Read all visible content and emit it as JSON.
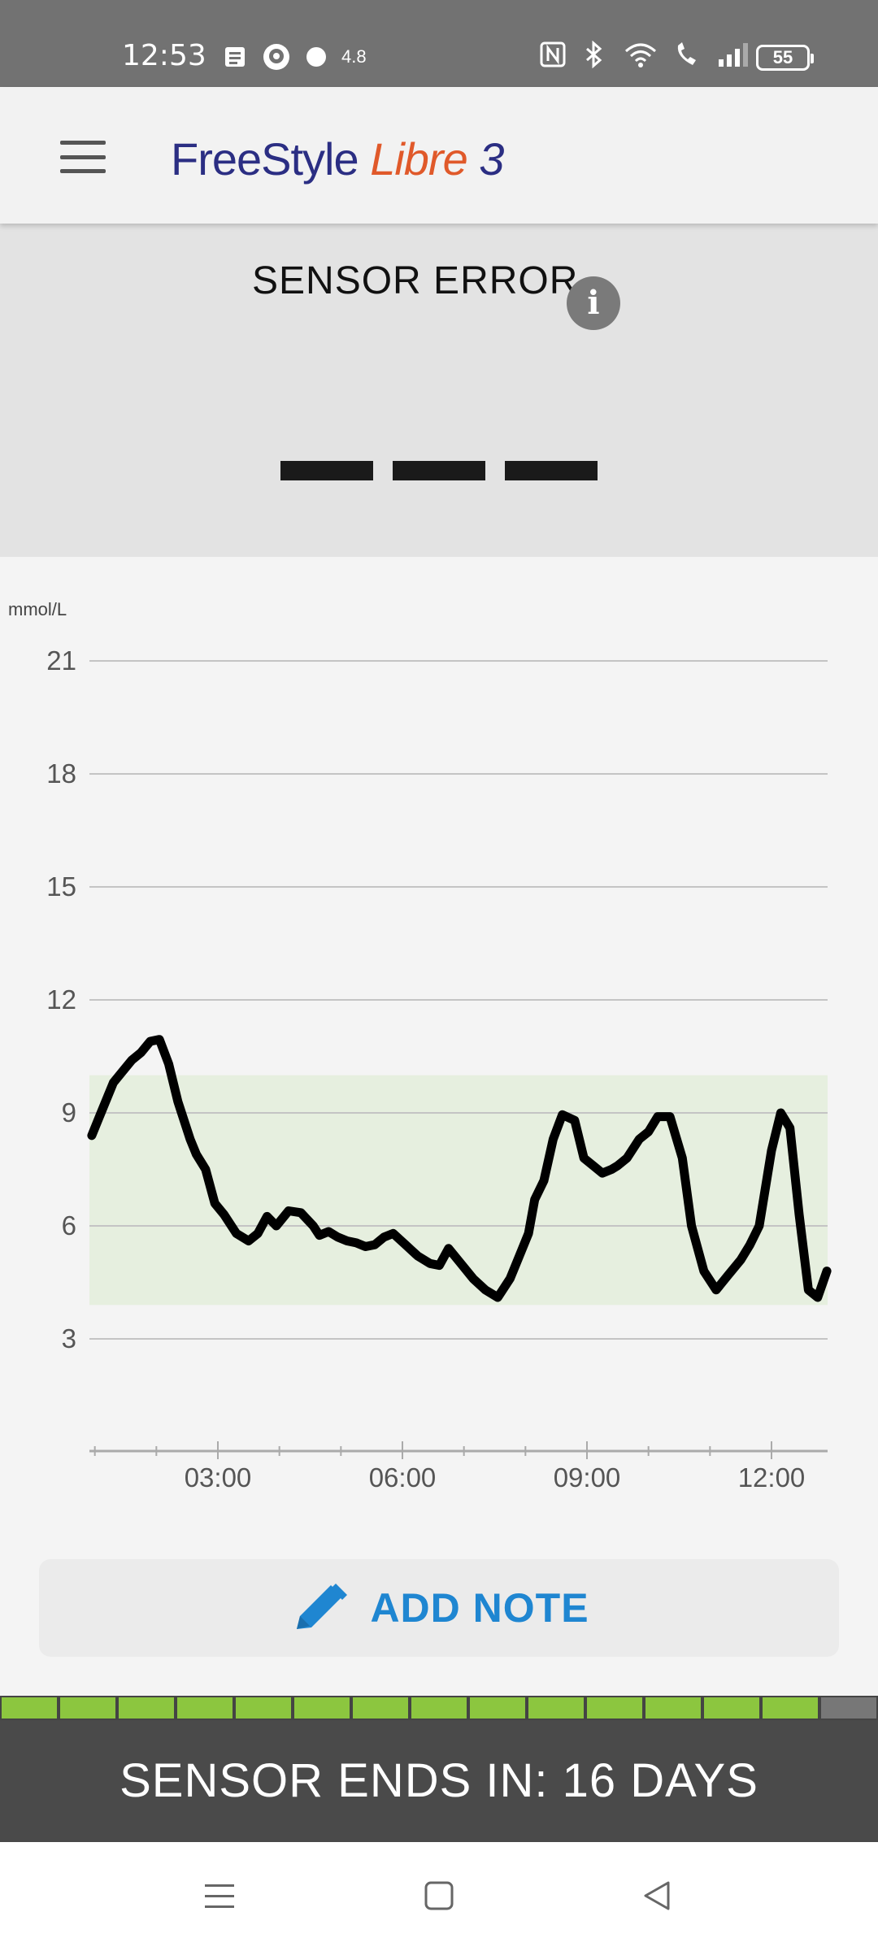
{
  "status_bar": {
    "time": "12:53",
    "speed": "4.8",
    "battery": "55"
  },
  "header": {
    "logo_freestyle": "FreeStyle",
    "logo_libre": "Libre",
    "logo_three": "3"
  },
  "error_panel": {
    "title": "SENSOR ERROR",
    "info_icon": "info-icon",
    "value_placeholder": "— — —"
  },
  "chart_data": {
    "type": "line",
    "ylabel": "mmol/L",
    "y_ticks": [
      "21",
      "18",
      "15",
      "12",
      "9",
      "6",
      "3"
    ],
    "x_ticks": [
      "03:00",
      "06:00",
      "09:00",
      "12:00"
    ],
    "ylim": [
      0,
      21
    ],
    "target_range": [
      3.9,
      10.0
    ],
    "x_range_hours": [
      0.95,
      12.9
    ],
    "grid": true,
    "series": [
      {
        "x": [
          0.95,
          1.1,
          1.3,
          1.45,
          1.6,
          1.75,
          1.9,
          2.05,
          2.2,
          2.35,
          2.55,
          2.65,
          2.8,
          2.95,
          3.1,
          3.3,
          3.5,
          3.65,
          3.8,
          3.95,
          4.15,
          4.35,
          4.55,
          4.65,
          4.8,
          4.95,
          5.1,
          5.25,
          5.4,
          5.55,
          5.7,
          5.85,
          6.05,
          6.25,
          6.45,
          6.6,
          6.75,
          6.95,
          7.15,
          7.35,
          7.55,
          7.75,
          7.9,
          8.05,
          8.15,
          8.3,
          8.45,
          8.6,
          8.8,
          8.95,
          9.1,
          9.25,
          9.4,
          9.5,
          9.65,
          9.85,
          10.0,
          10.15,
          10.35,
          10.55,
          10.7,
          10.9,
          11.1,
          11.3,
          11.5,
          11.65,
          11.8,
          12.0,
          12.15,
          12.3,
          12.45,
          12.6,
          12.75,
          12.9
        ],
        "y": [
          8.4,
          9.0,
          9.8,
          10.1,
          10.4,
          10.6,
          10.9,
          10.95,
          10.3,
          9.3,
          8.3,
          7.9,
          7.5,
          6.6,
          6.3,
          5.8,
          5.6,
          5.8,
          6.25,
          6.0,
          6.4,
          6.35,
          6.0,
          5.75,
          5.85,
          5.7,
          5.6,
          5.55,
          5.45,
          5.5,
          5.7,
          5.8,
          5.5,
          5.2,
          5.0,
          4.95,
          5.4,
          5.0,
          4.6,
          4.3,
          4.1,
          4.6,
          5.2,
          5.8,
          6.7,
          7.2,
          8.3,
          8.95,
          8.8,
          7.8,
          7.6,
          7.4,
          7.5,
          7.6,
          7.8,
          8.3,
          8.5,
          8.9,
          8.9,
          7.8,
          6.0,
          4.8,
          4.3,
          4.7,
          5.1,
          5.5,
          6.0,
          8.0,
          9.0,
          8.6,
          6.3,
          4.3,
          4.1,
          4.8
        ]
      }
    ]
  },
  "add_note": {
    "label": "ADD NOTE"
  },
  "sensor": {
    "ends_label": "SENSOR ENDS IN: 16 DAYS",
    "segments_total": 15,
    "segments_filled": 14
  },
  "nav": {
    "menu": "menu-icon",
    "home": "home-icon",
    "back": "back-icon"
  }
}
